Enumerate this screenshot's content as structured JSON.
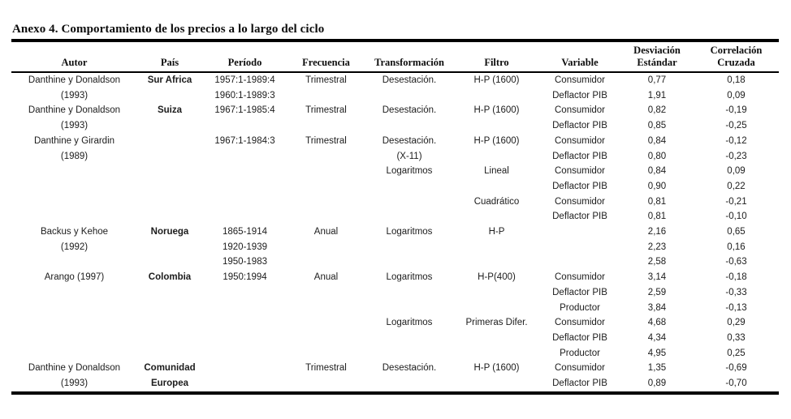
{
  "page": {
    "title": "Anexo 4. Comportamiento de los precios a lo largo del ciclo"
  },
  "colors": {
    "background": "#ffffff",
    "text": "#1c1c1c",
    "rule": "#000000"
  },
  "table": {
    "columns": [
      {
        "key": "autor",
        "label": "Autor"
      },
      {
        "key": "pais",
        "label": "País"
      },
      {
        "key": "periodo",
        "label": "Período"
      },
      {
        "key": "frecuencia",
        "label": "Frecuencia"
      },
      {
        "key": "transformacion",
        "label": "Transformación"
      },
      {
        "key": "filtro",
        "label": "Filtro"
      },
      {
        "key": "variable",
        "label": "Variable"
      },
      {
        "key": "desviacion",
        "label": "Desviación Estándar",
        "line1": "Desviación",
        "line2": "Estándar"
      },
      {
        "key": "correlacion",
        "label": "Correlación Cruzada",
        "line1": "Correlación",
        "line2": "Cruzada"
      }
    ],
    "rows": [
      [
        "Danthine y Donaldson",
        "Sur Africa",
        "1957:1-1989:4",
        "Trimestral",
        "Desestación.",
        "H-P (1600)",
        "Consumidor",
        "0,77",
        "0,18"
      ],
      [
        "(1993)",
        "",
        "1960:1-1989:3",
        "",
        "",
        "",
        "Deflactor PIB",
        "1,91",
        "0,09"
      ],
      [
        "Danthine y Donaldson",
        "Suiza",
        "1967:1-1985:4",
        "Trimestral",
        "Desestación.",
        "H-P (1600)",
        "Consumidor",
        "0,82",
        "-0,19"
      ],
      [
        "(1993)",
        "",
        "",
        "",
        "",
        "",
        "Deflactor PIB",
        "0,85",
        "-0,25"
      ],
      [
        "Danthine y Girardin",
        "",
        "1967:1-1984:3",
        "Trimestral",
        "Desestación.",
        "H-P (1600)",
        "Consumidor",
        "0,84",
        "-0,12"
      ],
      [
        "(1989)",
        "",
        "",
        "",
        "(X-11)",
        "",
        "Deflactor PIB",
        "0,80",
        "-0,23"
      ],
      [
        "",
        "",
        "",
        "",
        "Logaritmos",
        "Lineal",
        "Consumidor",
        "0,84",
        "0,09"
      ],
      [
        "",
        "",
        "",
        "",
        "",
        "",
        "Deflactor PIB",
        "0,90",
        "0,22"
      ],
      [
        "",
        "",
        "",
        "",
        "",
        "Cuadrático",
        "Consumidor",
        "0,81",
        "-0,21"
      ],
      [
        "",
        "",
        "",
        "",
        "",
        "",
        "Deflactor PIB",
        "0,81",
        "-0,10"
      ],
      [
        "Backus y Kehoe",
        "Noruega",
        "1865-1914",
        "Anual",
        "Logaritmos",
        "H-P",
        "",
        "2,16",
        "0,65"
      ],
      [
        "(1992)",
        "",
        "1920-1939",
        "",
        "",
        "",
        "",
        "2,23",
        "0,16"
      ],
      [
        "",
        "",
        "1950-1983",
        "",
        "",
        "",
        "",
        "2,58",
        "-0,63"
      ],
      [
        "Arango (1997)",
        "Colombia",
        "1950:1994",
        "Anual",
        "Logaritmos",
        "H-P(400)",
        "Consumidor",
        "3,14",
        "-0,18"
      ],
      [
        "",
        "",
        "",
        "",
        "",
        "",
        "Deflactor PIB",
        "2,59",
        "-0,33"
      ],
      [
        "",
        "",
        "",
        "",
        "",
        "",
        "Productor",
        "3,84",
        "-0,13"
      ],
      [
        "",
        "",
        "",
        "",
        "Logaritmos",
        "Primeras Difer.",
        "Consumidor",
        "4,68",
        "0,29"
      ],
      [
        "",
        "",
        "",
        "",
        "",
        "",
        "Deflactor PIB",
        "4,34",
        "0,33"
      ],
      [
        "",
        "",
        "",
        "",
        "",
        "",
        "Productor",
        "4,95",
        "0,25"
      ],
      [
        "Danthine y Donaldson",
        "Comunidad",
        "",
        "Trimestral",
        "Desestación.",
        "H-P (1600)",
        "Consumidor",
        "1,35",
        "-0,69"
      ],
      [
        "(1993)",
        "Europea",
        "",
        "",
        "",
        "",
        "Deflactor PIB",
        "0,89",
        "-0,70"
      ]
    ]
  }
}
